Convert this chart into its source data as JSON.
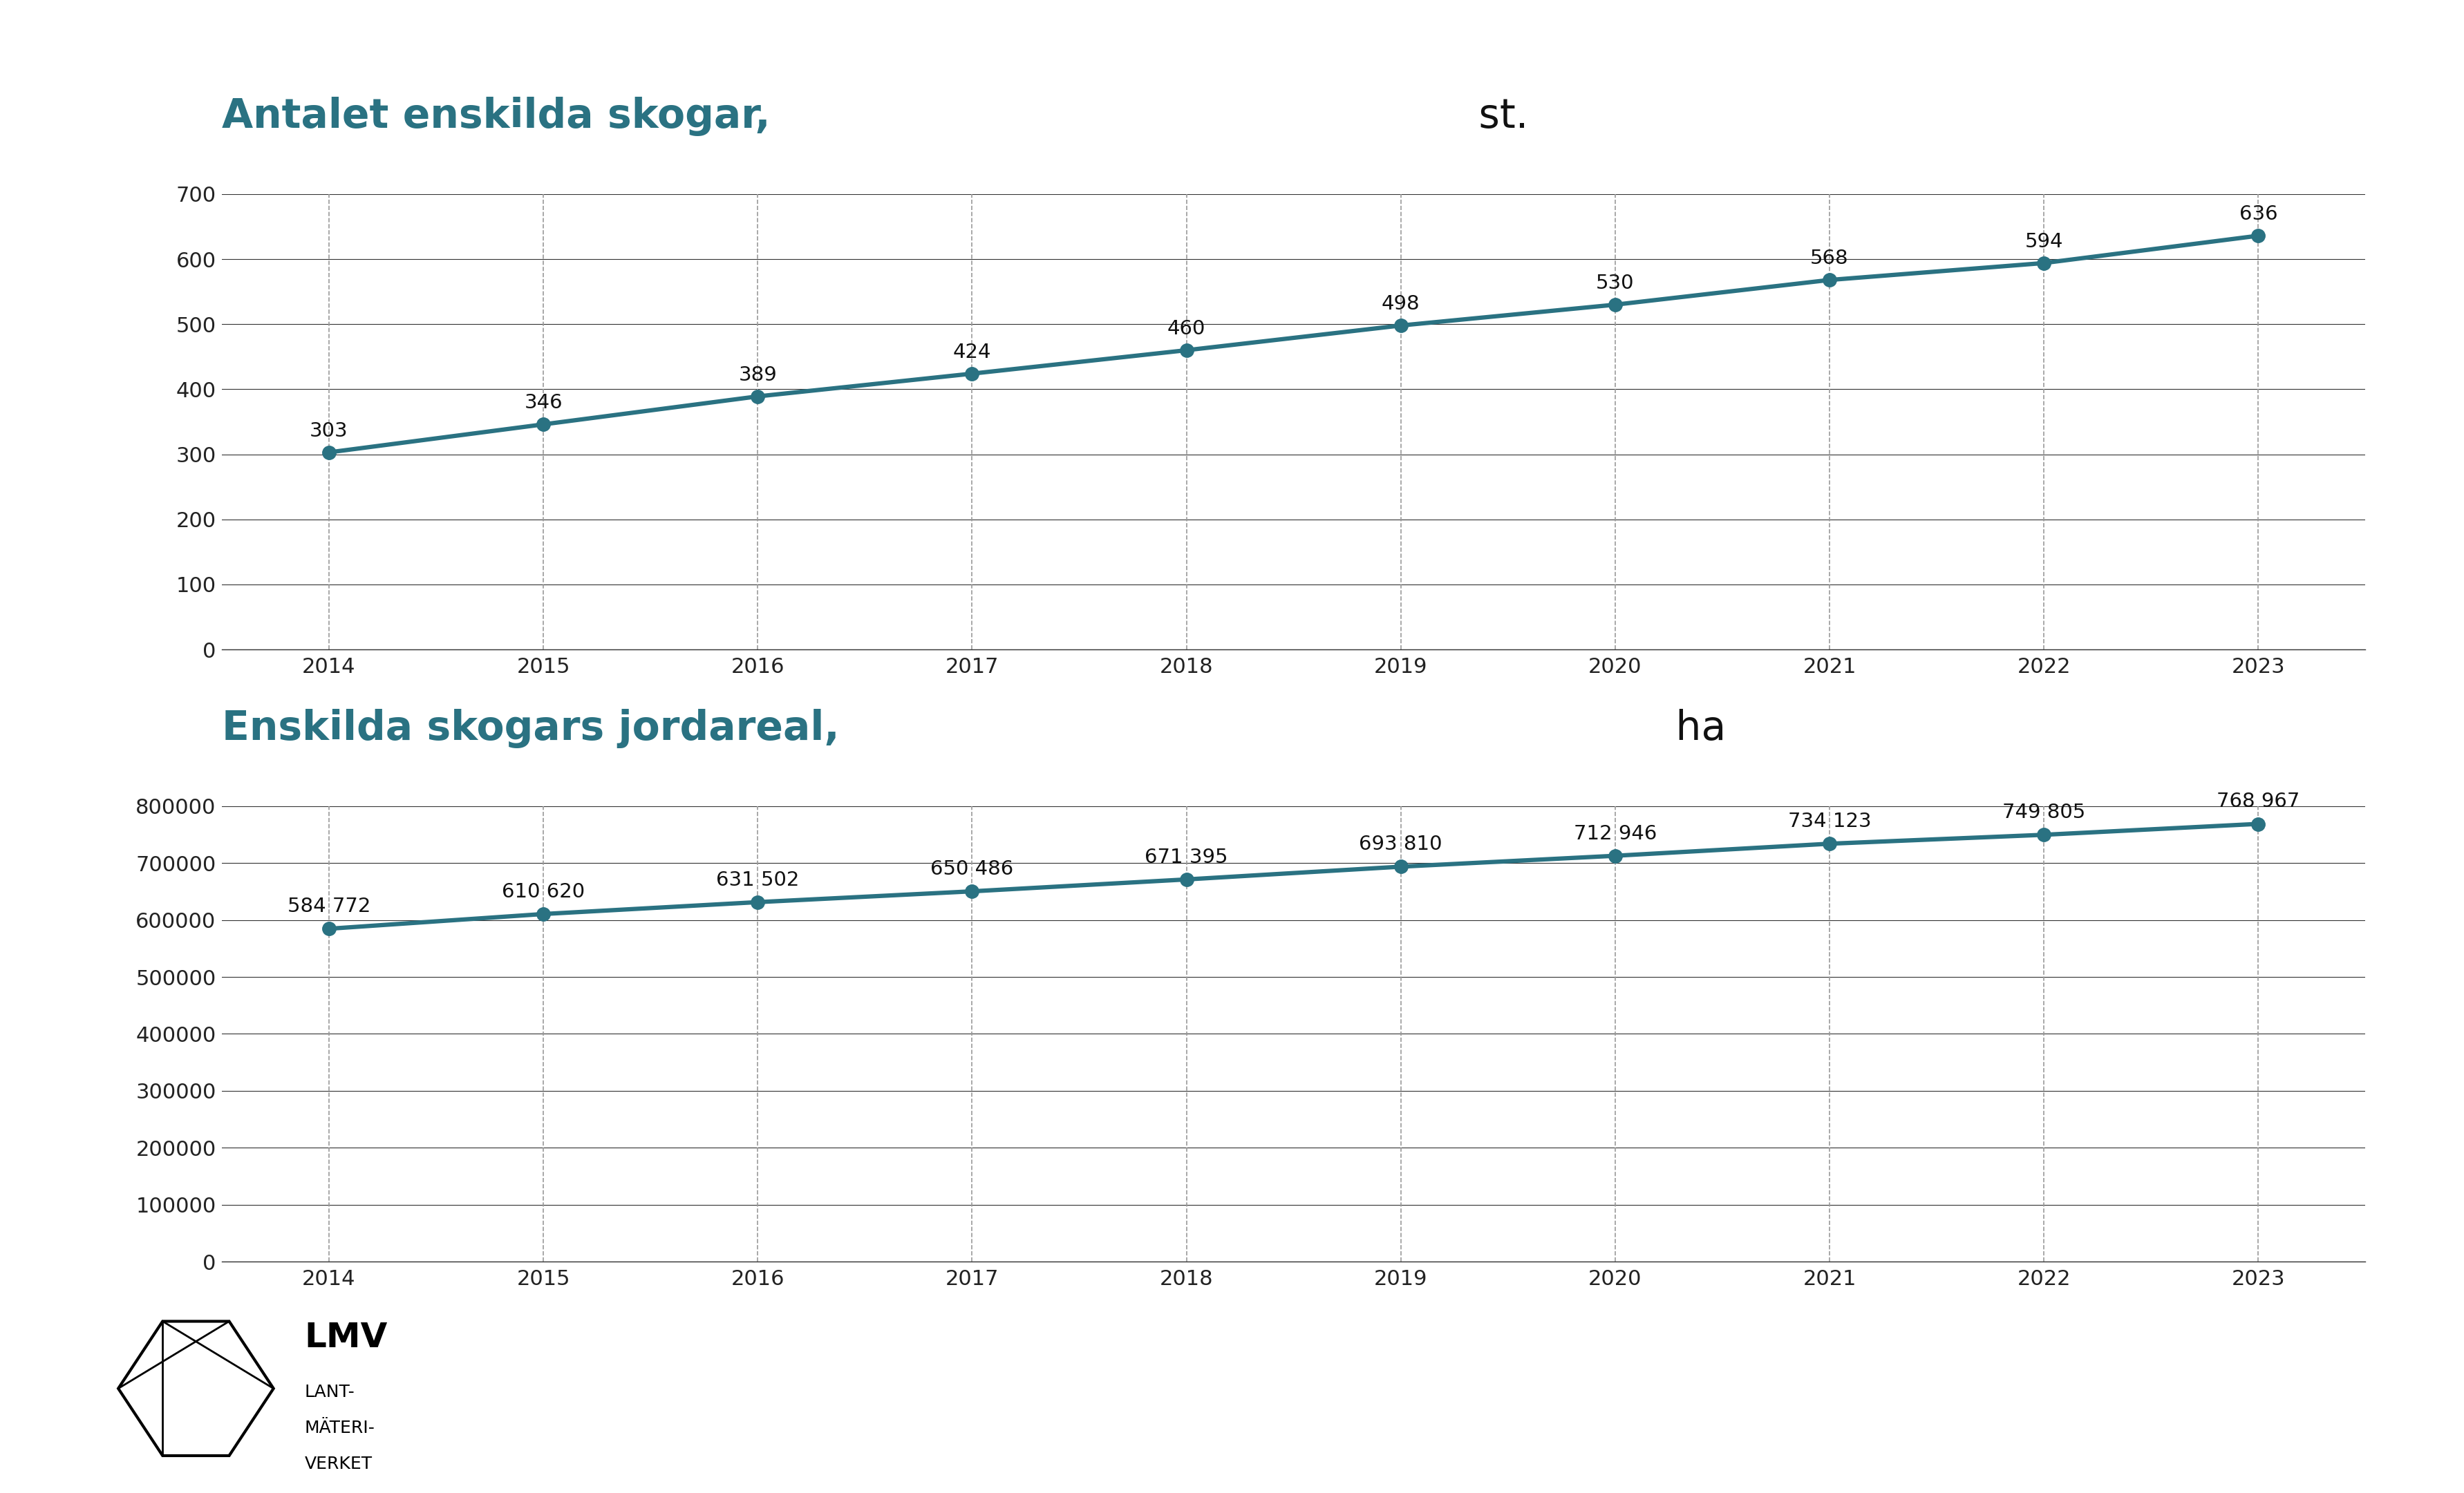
{
  "years": [
    2014,
    2015,
    2016,
    2017,
    2018,
    2019,
    2020,
    2021,
    2022,
    2023
  ],
  "count_values": [
    303,
    346,
    389,
    424,
    460,
    498,
    530,
    568,
    594,
    636
  ],
  "area_values": [
    584772,
    610620,
    631502,
    650486,
    671395,
    693810,
    712946,
    734123,
    749805,
    768967
  ],
  "title1": "Antalet enskilda skogar,",
  "title1_suffix": " st.",
  "title2": "Enskilda skogars jordareal,",
  "title2_suffix": " ha",
  "line_color": "#2a7282",
  "marker_color": "#2a7282",
  "bg_color": "#ffffff",
  "grid_color": "#333333",
  "dashed_grid_color": "#999999",
  "title_color": "#2a7282",
  "suffix_color": "#333333",
  "count_ylim": [
    0,
    700
  ],
  "count_yticks": [
    0,
    100,
    200,
    300,
    400,
    500,
    600,
    700
  ],
  "area_ylim": [
    0,
    800000
  ],
  "area_yticks": [
    0,
    100000,
    200000,
    300000,
    400000,
    500000,
    600000,
    700000,
    800000
  ],
  "title_fontsize": 42,
  "label_fontsize": 22,
  "tick_fontsize": 22,
  "annotation_fontsize": 21,
  "line_width": 4.5,
  "marker_size": 14
}
